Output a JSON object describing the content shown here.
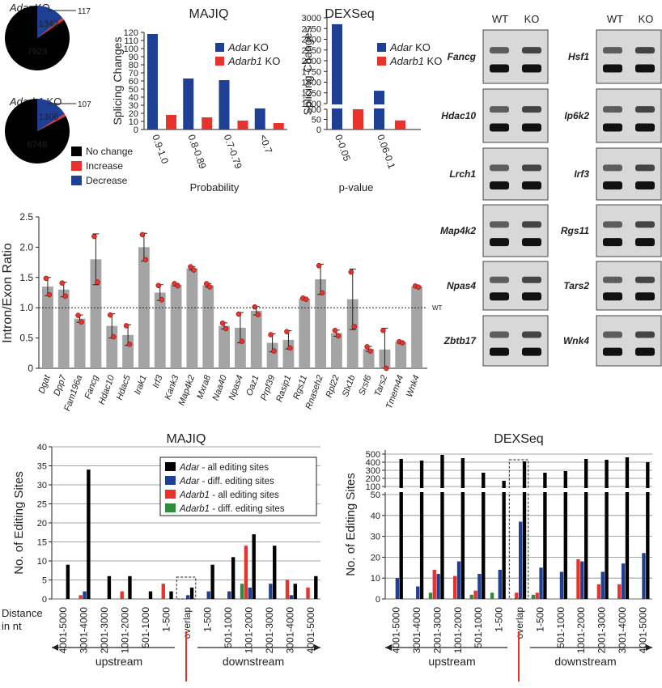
{
  "colors": {
    "black": "#000000",
    "red": "#e8332c",
    "blue": "#1f3f94",
    "green": "#2e8b3e",
    "gray": "#a4a4a4",
    "gel_bg": "#d8d8d8"
  },
  "pies": [
    {
      "title_gene": "Adar",
      "title_suffix": " KO",
      "values": [
        7923,
        117,
        1342
      ],
      "labels": [
        "7923",
        "117",
        "1342"
      ]
    },
    {
      "title_gene": "Adarb1",
      "title_suffix": " KO",
      "values": [
        6748,
        107,
        1306
      ],
      "labels": [
        "6748",
        "107",
        "1306"
      ]
    }
  ],
  "pie_legend": [
    "No change",
    "Increase",
    "Decrease"
  ],
  "majiq_top": {
    "title": "MAJIQ",
    "ylabel": "Splicing Changes",
    "xlabel": "Probability",
    "categories": [
      "0.9-1.0",
      "0.8-0.89",
      "0.7-0.79",
      "<0.7"
    ],
    "series": [
      {
        "gene": "Adar",
        "suffix": " KO",
        "values": [
          118,
          63,
          61,
          26
        ]
      },
      {
        "gene": "Adarb1",
        "suffix": " KO",
        "values": [
          18,
          15,
          11,
          8
        ]
      }
    ],
    "yticks": [
      0,
      10,
      20,
      30,
      40,
      50,
      60,
      70,
      80,
      90,
      100,
      110,
      120
    ],
    "ylim": [
      0,
      120
    ]
  },
  "dexseq_top": {
    "title": "DEXSeq",
    "ylabel": "Splicing Changes",
    "xlabel": "p-value",
    "categories": [
      "0-0.05",
      "0.06-0.1"
    ],
    "series": [
      {
        "gene": "Adar",
        "suffix": " KO",
        "values": [
          2850,
          1300
        ]
      },
      {
        "gene": "Adarb1",
        "suffix": " KO",
        "values": [
          100,
          45
        ]
      }
    ],
    "yticks_lower": [
      0,
      50,
      100
    ],
    "yticks_upper": [
      1000,
      1250,
      1500,
      1750,
      2000,
      2250,
      2500,
      2750,
      3000
    ]
  },
  "gels": {
    "header": [
      "WT",
      "KO"
    ],
    "left": [
      "Fancg",
      "Hdac10",
      "Lrch1",
      "Map4k2",
      "Npas4",
      "Zbtb17"
    ],
    "right": [
      "Hsf1",
      "Ip6k2",
      "Irf3",
      "Rgs11",
      "Tars2",
      "Wnk4"
    ]
  },
  "chart_data": [
    {
      "type": "bar",
      "title": "",
      "ylabel": "Intron/Exon Ratio",
      "ylim": [
        0,
        2.5
      ],
      "yticks": [
        "0",
        "0.5",
        "1.0",
        "1.5",
        "2.0",
        "2.5"
      ],
      "reference_line": {
        "value": 1.0,
        "label": "WT"
      },
      "categories": [
        "Dgat",
        "Dpp7",
        "Fam196a",
        "Fancg",
        "Hdac10",
        "Hdac5",
        "Irak1",
        "Irf3",
        "Kank3",
        "Map4k2",
        "Mxra8",
        "Naa40",
        "Npas4",
        "Oaz1",
        "Prpf39",
        "Rasip1",
        "Rgs11",
        "Rnaseh2",
        "Rpl22",
        "Slx1b",
        "Srsf6",
        "Tars2",
        "Tmem44",
        "Wnk4"
      ],
      "values": [
        1.35,
        1.3,
        0.82,
        1.8,
        0.7,
        0.55,
        2.0,
        1.25,
        1.38,
        1.65,
        1.37,
        0.7,
        0.67,
        0.95,
        0.42,
        0.47,
        1.15,
        1.47,
        0.58,
        1.14,
        0.32,
        0.31,
        0.43,
        1.35
      ],
      "errors": [
        0.15,
        0.12,
        0.06,
        0.42,
        0.2,
        0.17,
        0.23,
        0.13,
        0.02,
        0.03,
        0.03,
        0.05,
        0.25,
        0.07,
        0.15,
        0.15,
        0.01,
        0.25,
        0.05,
        0.5,
        0.04,
        0.35,
        0.01,
        0.01
      ]
    },
    {
      "type": "bar",
      "title": "MAJIQ",
      "ylabel": "No. of Editing Sites",
      "ylim": [
        0,
        40
      ],
      "yticks": [
        0,
        5,
        10,
        15,
        20,
        25,
        30,
        35,
        40
      ],
      "xlabel_lines": [
        "Distance",
        "in nt"
      ],
      "categories": [
        "4001-5000",
        "3001-4000",
        "2001-3000",
        "1001-2000",
        "501-1000",
        "1-500",
        "overlap",
        "1-500",
        "501-1000",
        "1001-2000",
        "2001-3000",
        "3001-4000",
        "4001-5000"
      ],
      "region_labels": [
        "upstream",
        "downstream"
      ],
      "series": [
        {
          "gene": "Adarb1",
          "suffix": " - diff. editing sites",
          "values": [
            0,
            0,
            0,
            0,
            0,
            0,
            0,
            0,
            0,
            4,
            0,
            0,
            0
          ]
        },
        {
          "gene": "Adarb1",
          "suffix": " - all editing sites",
          "values": [
            0,
            1,
            0,
            2,
            0,
            4,
            0,
            0,
            0,
            14,
            0,
            5,
            3
          ]
        },
        {
          "gene": "Adar",
          "suffix": " - diff. editing sites",
          "values": [
            0,
            2,
            0,
            0,
            0,
            0,
            1,
            2,
            2,
            3,
            4,
            1,
            0
          ]
        },
        {
          "gene": "Adar",
          "suffix": " - all editing sites",
          "values": [
            9,
            34,
            6,
            6,
            2,
            2,
            3,
            9,
            11,
            17,
            14,
            4,
            6
          ]
        }
      ],
      "legend_order": [
        3,
        2,
        1,
        0
      ]
    },
    {
      "type": "bar",
      "title": "DEXSeq",
      "ylabel": "No. of Editing Sites",
      "yticks_lower": [
        0,
        10,
        20,
        30,
        40,
        50
      ],
      "yticks_upper": [
        100,
        200,
        300,
        400,
        500
      ],
      "categories": [
        "4001-5000",
        "3001-4000",
        "2001-3000",
        "1001-2000",
        "501-1000",
        "1-500",
        "overlap",
        "1-500",
        "501-1000",
        "1001-2000",
        "2001-3000",
        "3001-4000",
        "4001-5000"
      ],
      "region_labels": [
        "upstream",
        "downstream"
      ],
      "series": [
        {
          "gene": "Adarb1",
          "suffix": " - diff. editing sites",
          "values": [
            0,
            0,
            3,
            0,
            2,
            3,
            0,
            2,
            0,
            0,
            0,
            0,
            0
          ]
        },
        {
          "gene": "Adarb1",
          "suffix": " - all editing sites",
          "values": [
            0,
            0,
            14,
            11,
            4,
            0,
            3,
            3,
            0,
            19,
            7,
            7,
            0
          ]
        },
        {
          "gene": "Adar",
          "suffix": " - diff. editing sites",
          "values": [
            10,
            6,
            12,
            18,
            12,
            14,
            37,
            15,
            13,
            18,
            13,
            17,
            22
          ]
        },
        {
          "gene": "Adar",
          "suffix": " - all editing sites",
          "values": [
            440,
            420,
            490,
            450,
            270,
            170,
            410,
            270,
            290,
            440,
            430,
            460,
            400
          ]
        }
      ]
    }
  ]
}
